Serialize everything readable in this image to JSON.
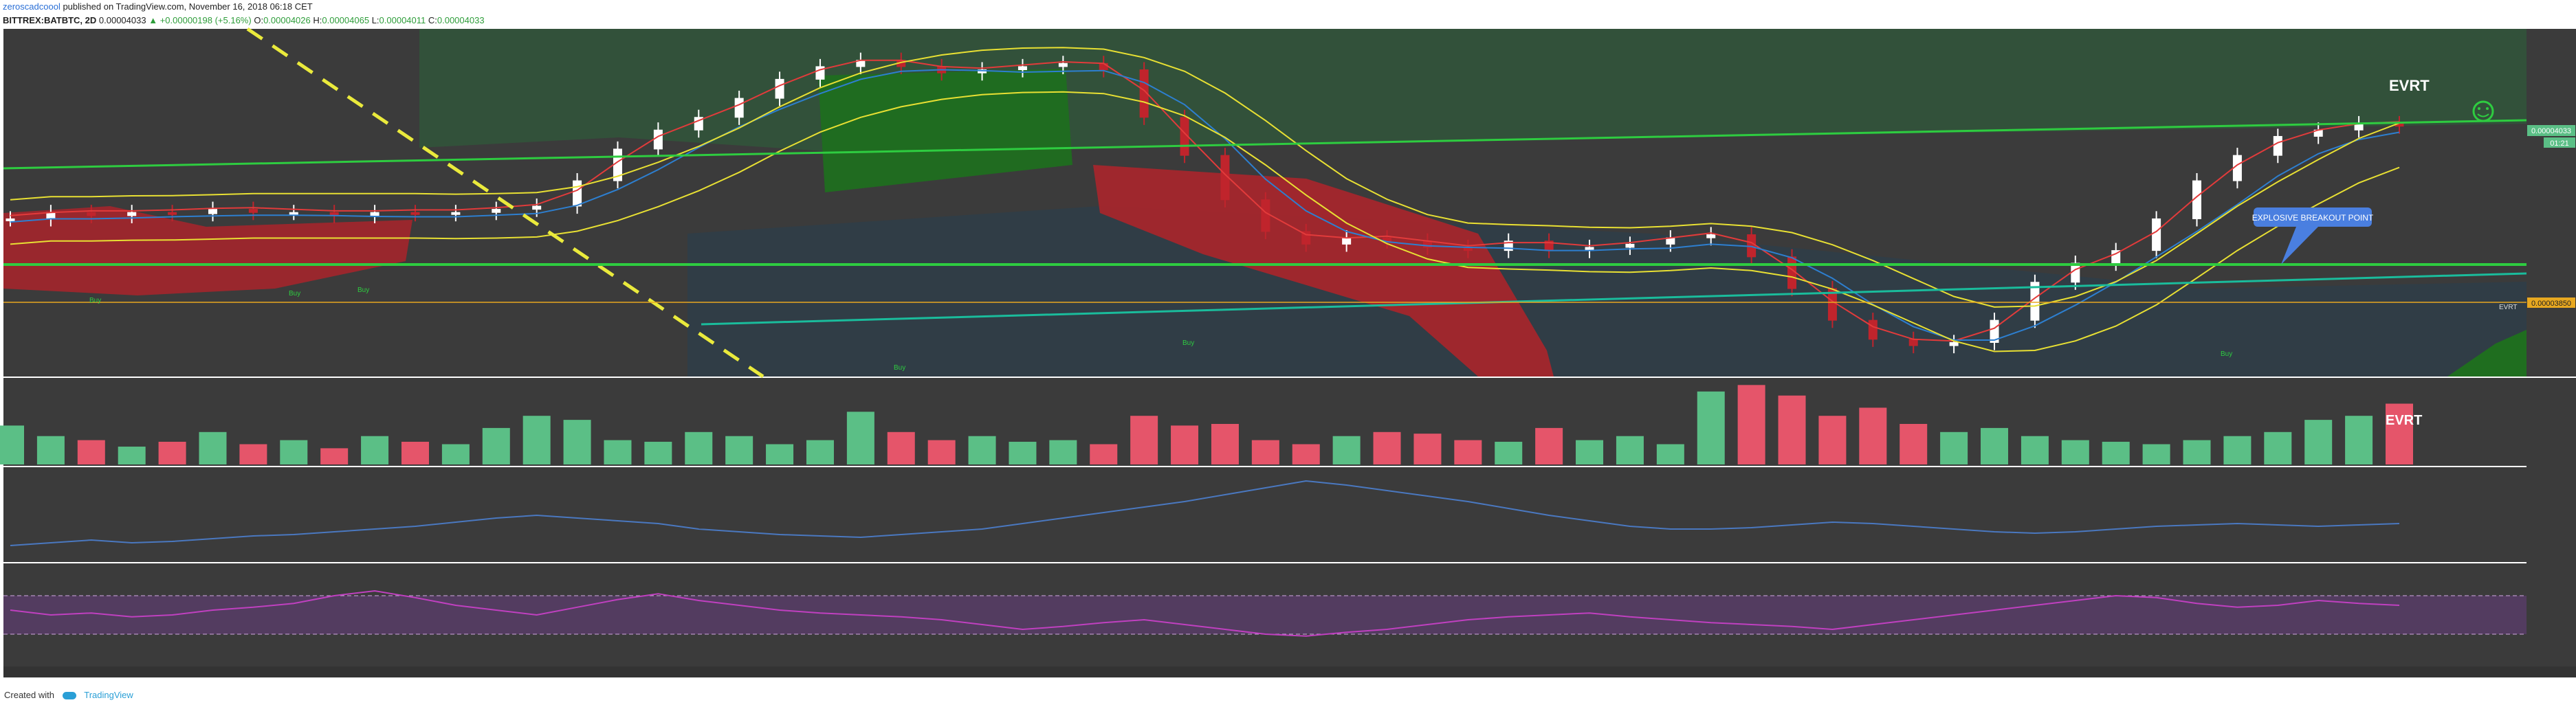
{
  "header": {
    "author": "zeroscadcoool",
    "published": "published on TradingView.com, November 16, 2018 06:18 CET",
    "symbol": "BITTREX:BATBTC, 2D",
    "last_price": "0.00004033",
    "change": "+0.00000198 (+5.16%)",
    "open_label": "O:",
    "open_value": "0.00004026",
    "high_label": "H:",
    "high_value": "0.00004065",
    "low_label": "L:",
    "low_value": "0.00004011",
    "close_label": "C:",
    "close_value": "0.00004033"
  },
  "annotations": {
    "evrt_top": "EVRT",
    "evrt_volume": "EVRT",
    "breakout": "EXPLOSIVE BREAKOUT POINT",
    "buy_signal": "Buy",
    "smiley": "☺"
  },
  "price_scale": {
    "current_price_badge": "0.00004033",
    "countdown_badge": "01:21",
    "level_badge": "0.00003850",
    "level_line_label": "EVRT"
  },
  "colors": {
    "panel_bg": "#3b3b3b",
    "up_candle": "#ffffff",
    "down_candle": "#c0242c",
    "volume_up": "#5bbf86",
    "volume_down": "#e5556a",
    "kumo_bull": "#1f6e1f",
    "kumo_bear": "#a4262c",
    "tenkan": "#e23b3b",
    "kijun": "#2d7fd0",
    "chikou_yellow": "#e8e033",
    "support_green": "#2ecc40",
    "trend_teal": "#1abc9c",
    "downtrend_dashed": "#eaea3c",
    "rsi_line": "#c040c0",
    "osc_line": "#4a78c0",
    "breakout_box": "#4a7fe0"
  },
  "footer": {
    "created_with": "Created with",
    "brand": "TradingView"
  },
  "chart_data": {
    "type": "line",
    "title": "BITTREX:BATBTC, 2D",
    "xlabel": "",
    "ylabel": "",
    "series": [
      {
        "values": [
          3.2,
          3.3,
          3.25,
          3.3,
          3.28,
          3.35,
          3.3,
          3.3,
          3.25,
          3.3,
          3.28,
          3.3,
          3.35,
          3.4,
          3.8,
          4.3,
          4.6,
          4.8,
          5.1,
          5.4,
          5.6,
          5.7,
          5.6,
          5.5,
          5.55,
          5.6,
          5.65,
          5.55,
          4.8,
          4.2,
          3.5,
          3.0,
          2.8,
          2.9,
          2.85,
          2.75,
          2.7,
          2.85,
          2.7,
          2.75,
          2.8,
          2.9,
          2.95,
          2.6,
          2.1,
          1.6,
          1.3,
          1.2,
          1.25,
          1.6,
          2.2,
          2.5,
          2.7,
          3.2,
          3.8,
          4.2,
          4.5,
          4.6,
          4.7,
          4.66
        ]
      }
    ],
    "volume": [
      48,
      35,
      30,
      22,
      28,
      40,
      25,
      30,
      20,
      35,
      28,
      25,
      45,
      60,
      55,
      30,
      28,
      40,
      35,
      25,
      30,
      65,
      40,
      30,
      35,
      28,
      30,
      25,
      60,
      48,
      50,
      30,
      25,
      35,
      40,
      38,
      30,
      28,
      45,
      30,
      35,
      25,
      90,
      98,
      85,
      60,
      70,
      50,
      40,
      45,
      35,
      30,
      28,
      25,
      30,
      35,
      40,
      55,
      60,
      75
    ],
    "oscillator": [
      48,
      50,
      52,
      50,
      51,
      53,
      55,
      56,
      58,
      60,
      62,
      65,
      68,
      70,
      68,
      66,
      64,
      60,
      58,
      56,
      55,
      54,
      56,
      58,
      60,
      64,
      68,
      72,
      76,
      80,
      85,
      90,
      95,
      92,
      88,
      84,
      80,
      75,
      70,
      66,
      62,
      60,
      60,
      61,
      63,
      65,
      64,
      62,
      60,
      58,
      57,
      58,
      60,
      62,
      63,
      64,
      63,
      62,
      63,
      64
    ],
    "rsi": [
      55,
      50,
      52,
      48,
      50,
      55,
      58,
      62,
      70,
      75,
      68,
      60,
      55,
      50,
      58,
      66,
      72,
      65,
      60,
      55,
      52,
      50,
      48,
      45,
      40,
      35,
      38,
      42,
      45,
      40,
      35,
      30,
      28,
      32,
      35,
      40,
      45,
      48,
      50,
      52,
      48,
      45,
      42,
      40,
      38,
      35,
      40,
      45,
      50,
      55,
      60,
      65,
      70,
      68,
      62,
      58,
      60,
      65,
      62,
      60
    ],
    "rsi_band": [
      30,
      70
    ]
  }
}
